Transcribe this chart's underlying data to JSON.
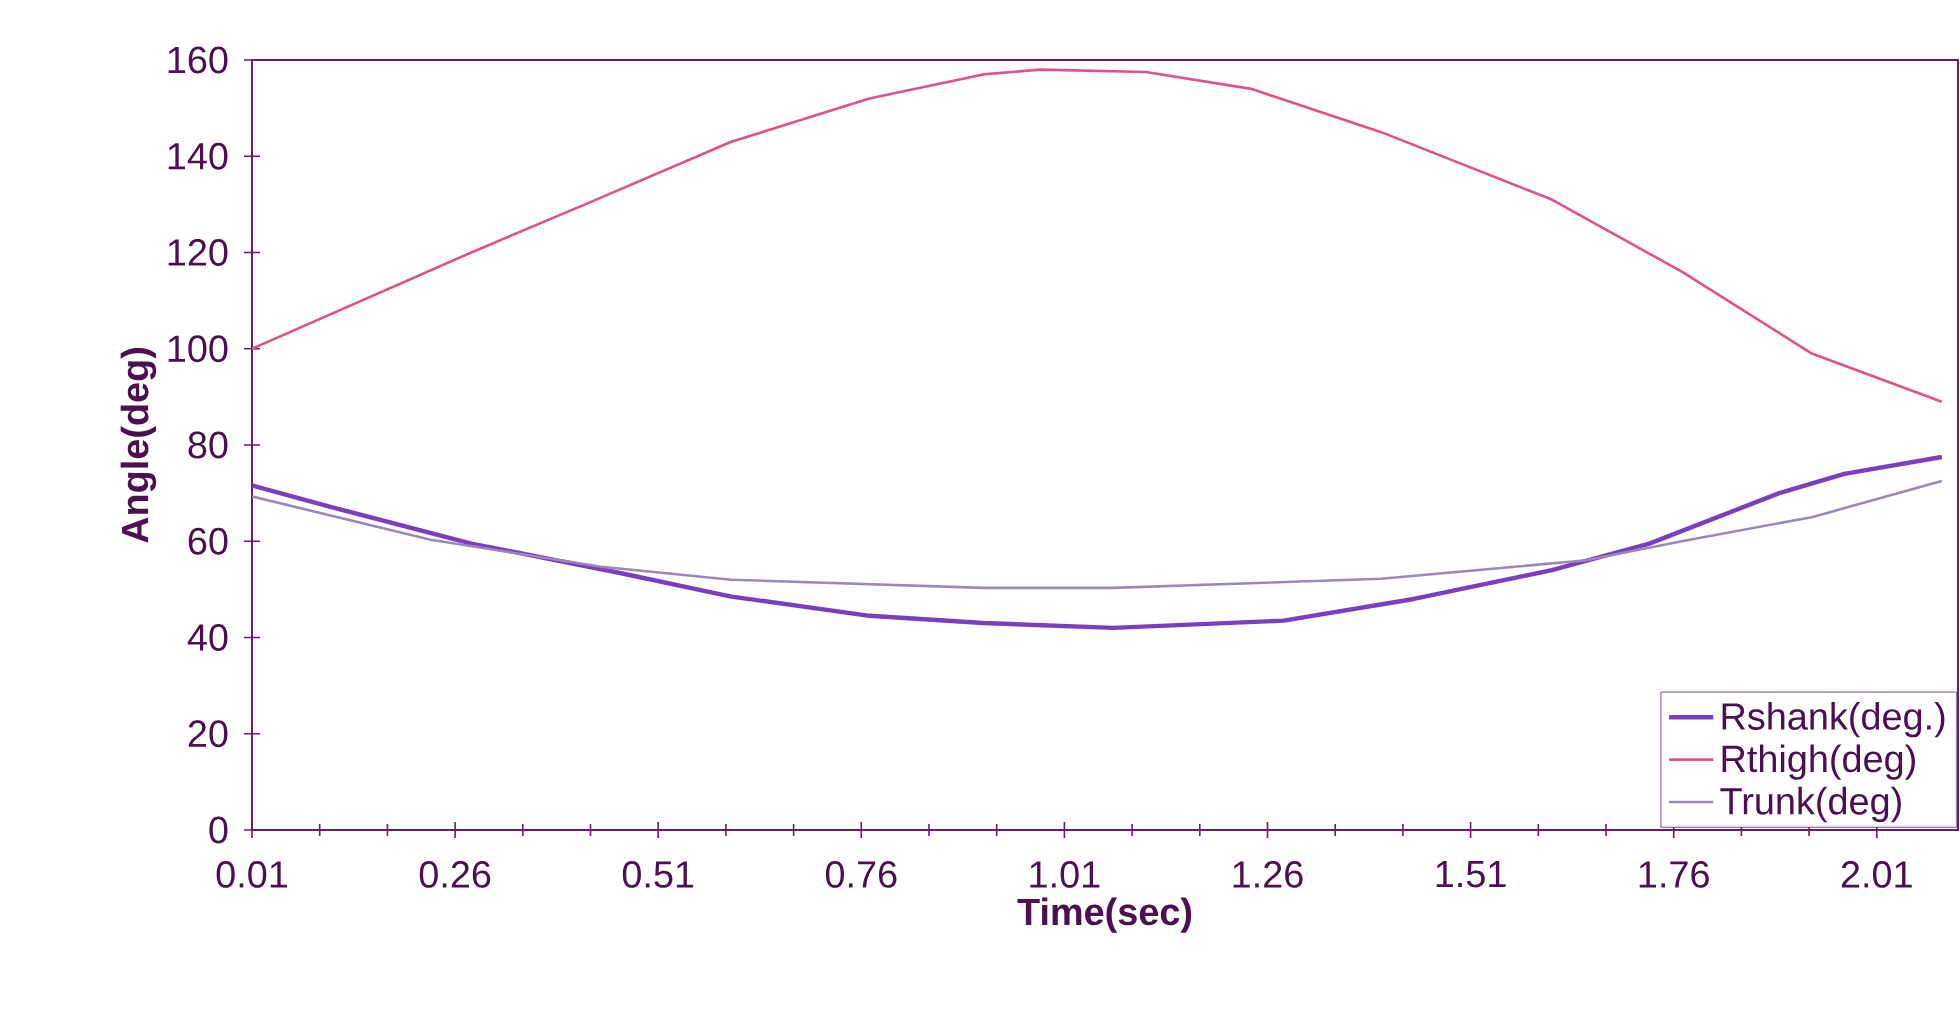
{
  "chart_data": {
    "type": "line",
    "xlabel": "Time(sec)",
    "ylabel": "Angle(deg)",
    "xlim": [
      0.01,
      2.11
    ],
    "xticks": [
      0.01,
      0.26,
      0.51,
      0.76,
      1.01,
      1.26,
      1.51,
      1.76,
      2.01
    ],
    "ylim": [
      0,
      160
    ],
    "yticks": [
      0,
      20,
      40,
      60,
      80,
      100,
      120,
      140,
      160
    ],
    "grid": false,
    "legend": "bottom right",
    "marker": "none",
    "line_style": "solid",
    "series": [
      {
        "name": "Rshank(deg.)",
        "color": "#7a3fc0",
        "x": [
          0.01,
          0.11,
          0.28,
          0.46,
          0.6,
          0.77,
          0.91,
          1.07,
          1.28,
          1.44,
          1.61,
          1.73,
          1.89,
          1.97,
          2.09
        ],
        "values": [
          71.6,
          67,
          59.5,
          53.5,
          48.5,
          44.5,
          43,
          42,
          43.5,
          48,
          54,
          59.5,
          70,
          74,
          77.5
        ]
      },
      {
        "name": "Rthigh(deg)",
        "color": "#e0508c",
        "x": [
          0.01,
          0.28,
          0.42,
          0.6,
          0.77,
          0.91,
          0.98,
          1.11,
          1.24,
          1.4,
          1.61,
          1.77,
          1.93,
          2.09
        ],
        "values": [
          100,
          120,
          130,
          143,
          152,
          157,
          158,
          157.5,
          154,
          145,
          131,
          116,
          99,
          89
        ]
      },
      {
        "name": "Trunk(deg)",
        "color": "#9a88b8",
        "x": [
          0.01,
          0.23,
          0.44,
          0.6,
          0.91,
          1.07,
          1.4,
          1.65,
          1.77,
          1.93,
          2.09
        ],
        "values": [
          69.3,
          60.3,
          54.7,
          52,
          50.3,
          50.3,
          52.2,
          56,
          60,
          65,
          72.5
        ]
      }
    ]
  }
}
